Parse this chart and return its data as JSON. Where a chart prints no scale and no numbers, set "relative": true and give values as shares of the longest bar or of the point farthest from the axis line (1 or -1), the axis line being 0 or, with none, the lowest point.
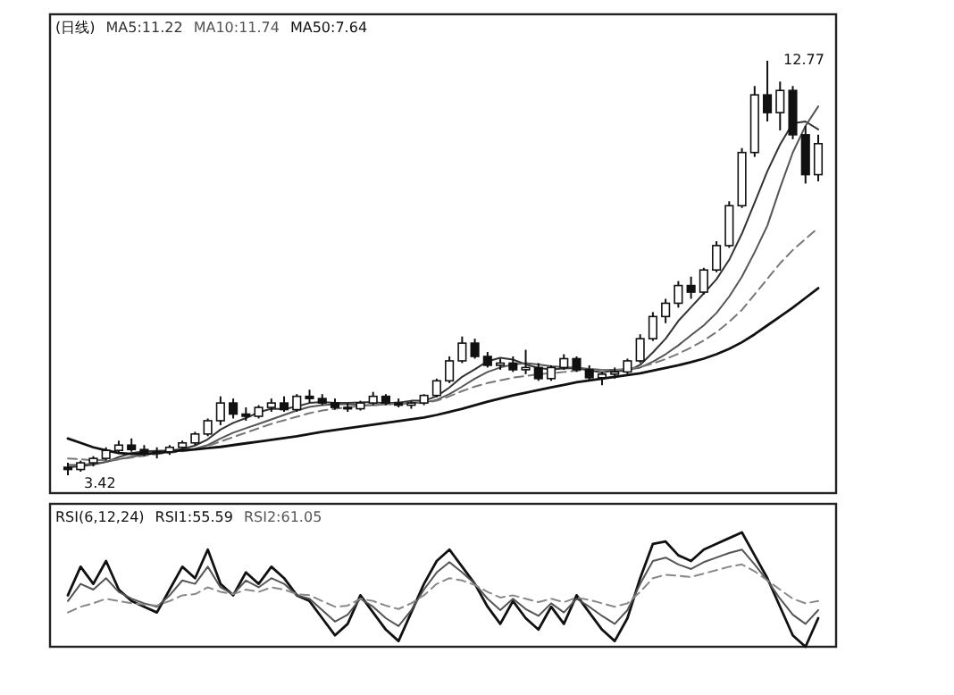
{
  "chart_data": [
    {
      "type": "candlestick",
      "title": "(日线)",
      "categories": [
        null,
        null,
        null,
        null,
        null,
        null,
        null,
        null,
        null,
        null,
        null,
        null,
        null,
        null,
        null,
        null,
        null,
        null,
        null,
        null,
        null,
        null,
        null,
        null,
        null,
        null,
        null,
        null,
        null,
        null,
        null,
        null,
        null,
        null,
        null,
        null,
        null,
        null,
        null,
        null,
        null,
        null,
        null,
        null,
        null,
        null,
        null,
        null,
        null,
        null,
        null,
        null,
        null,
        null,
        null,
        null,
        null,
        null,
        null,
        null
      ],
      "ohlc": [
        [
          3.6,
          3.7,
          3.42,
          3.55
        ],
        [
          3.55,
          3.75,
          3.5,
          3.7
        ],
        [
          3.7,
          3.85,
          3.62,
          3.8
        ],
        [
          3.8,
          4.05,
          3.75,
          3.98
        ],
        [
          3.98,
          4.2,
          3.9,
          4.1
        ],
        [
          4.1,
          4.25,
          3.95,
          4.0
        ],
        [
          4.0,
          4.1,
          3.85,
          3.92
        ],
        [
          3.92,
          4.05,
          3.8,
          3.95
        ],
        [
          3.95,
          4.1,
          3.88,
          4.05
        ],
        [
          4.05,
          4.2,
          4.0,
          4.15
        ],
        [
          4.15,
          4.4,
          4.1,
          4.35
        ],
        [
          4.35,
          4.7,
          4.3,
          4.65
        ],
        [
          4.65,
          5.2,
          4.55,
          5.05
        ],
        [
          5.05,
          5.15,
          4.7,
          4.8
        ],
        [
          4.8,
          4.95,
          4.65,
          4.75
        ],
        [
          4.75,
          5.0,
          4.7,
          4.95
        ],
        [
          4.95,
          5.15,
          4.85,
          5.05
        ],
        [
          5.05,
          5.2,
          4.85,
          4.9
        ],
        [
          4.9,
          5.25,
          4.85,
          5.2
        ],
        [
          5.2,
          5.35,
          5.05,
          5.15
        ],
        [
          5.15,
          5.25,
          5.0,
          5.05
        ],
        [
          5.05,
          5.15,
          4.9,
          4.95
        ],
        [
          4.95,
          5.05,
          4.85,
          4.92
        ],
        [
          4.92,
          5.1,
          4.88,
          5.05
        ],
        [
          5.05,
          5.3,
          5.0,
          5.2
        ],
        [
          5.2,
          5.25,
          5.0,
          5.05
        ],
        [
          5.05,
          5.15,
          4.95,
          5.0
        ],
        [
          5.0,
          5.1,
          4.92,
          5.05
        ],
        [
          5.05,
          5.25,
          5.0,
          5.22
        ],
        [
          5.22,
          5.6,
          5.18,
          5.55
        ],
        [
          5.55,
          6.1,
          5.5,
          6.0
        ],
        [
          6.0,
          6.55,
          5.95,
          6.4
        ],
        [
          6.4,
          6.5,
          6.05,
          6.1
        ],
        [
          6.1,
          6.2,
          5.85,
          5.9
        ],
        [
          5.9,
          6.05,
          5.8,
          5.95
        ],
        [
          5.95,
          6.1,
          5.75,
          5.8
        ],
        [
          5.8,
          6.25,
          5.7,
          5.85
        ],
        [
          5.85,
          5.95,
          5.55,
          5.6
        ],
        [
          5.6,
          5.9,
          5.55,
          5.85
        ],
        [
          5.85,
          6.15,
          5.8,
          6.05
        ],
        [
          6.05,
          6.1,
          5.75,
          5.8
        ],
        [
          5.8,
          5.9,
          5.55,
          5.62
        ],
        [
          5.62,
          5.75,
          5.45,
          5.7
        ],
        [
          5.7,
          5.85,
          5.6,
          5.75
        ],
        [
          5.75,
          6.05,
          5.7,
          6.0
        ],
        [
          6.0,
          6.6,
          5.95,
          6.5
        ],
        [
          6.5,
          7.1,
          6.45,
          7.0
        ],
        [
          7.0,
          7.4,
          6.85,
          7.3
        ],
        [
          7.3,
          7.8,
          7.2,
          7.7
        ],
        [
          7.7,
          7.9,
          7.4,
          7.55
        ],
        [
          7.55,
          8.1,
          7.5,
          8.05
        ],
        [
          8.05,
          8.7,
          8.0,
          8.6
        ],
        [
          8.6,
          9.6,
          8.55,
          9.5
        ],
        [
          9.5,
          10.8,
          9.45,
          10.7
        ],
        [
          10.7,
          12.2,
          10.6,
          12.0
        ],
        [
          12.0,
          12.77,
          11.4,
          11.6
        ],
        [
          11.6,
          12.3,
          11.2,
          12.1
        ],
        [
          12.1,
          12.2,
          11.0,
          11.1
        ],
        [
          11.1,
          11.3,
          10.0,
          10.2
        ],
        [
          10.2,
          11.1,
          10.05,
          10.9
        ]
      ],
      "series": [
        {
          "type": "line",
          "name": "MA5:11.22",
          "color": "#333333",
          "values": [
            3.6,
            3.62,
            3.66,
            3.72,
            3.83,
            3.92,
            3.96,
            3.97,
            3.98,
            4.01,
            4.09,
            4.23,
            4.45,
            4.6,
            4.71,
            4.84,
            4.92,
            4.91,
            4.97,
            5.05,
            5.07,
            5.05,
            5.05,
            5.06,
            5.07,
            5.04,
            5.06,
            5.1,
            5.1,
            5.2,
            5.4,
            5.64,
            5.81,
            5.99,
            6.07,
            6.03,
            5.92,
            5.84,
            5.81,
            5.83,
            5.84,
            5.78,
            5.74,
            5.78,
            5.77,
            5.91,
            6.19,
            6.5,
            6.9,
            7.21,
            7.52,
            7.84,
            8.28,
            8.87,
            9.57,
            10.28,
            10.88,
            11.36,
            11.4,
            11.22
          ]
        },
        {
          "type": "line",
          "name": "MA10:11.74",
          "color": "#555555",
          "values": [
            3.65,
            3.65,
            3.68,
            3.72,
            3.78,
            3.84,
            3.88,
            3.92,
            3.96,
            3.98,
            4.02,
            4.1,
            4.25,
            4.38,
            4.48,
            4.58,
            4.68,
            4.78,
            4.88,
            4.96,
            5.0,
            5.02,
            5.02,
            5.0,
            5.0,
            5.02,
            5.04,
            5.05,
            5.06,
            5.12,
            5.25,
            5.42,
            5.6,
            5.75,
            5.85,
            5.92,
            5.95,
            5.92,
            5.88,
            5.86,
            5.85,
            5.82,
            5.8,
            5.8,
            5.8,
            5.85,
            5.98,
            6.15,
            6.35,
            6.58,
            6.8,
            7.08,
            7.45,
            7.9,
            8.45,
            9.05,
            9.9,
            10.7,
            11.3,
            11.74
          ]
        },
        {
          "type": "line",
          "color": "#777777",
          "line_style": "dashed",
          "values": [
            3.8,
            3.78,
            3.76,
            3.76,
            3.78,
            3.82,
            3.86,
            3.9,
            3.93,
            3.96,
            4.0,
            4.08,
            4.18,
            4.28,
            4.38,
            4.48,
            4.58,
            4.66,
            4.74,
            4.82,
            4.88,
            4.92,
            4.95,
            4.98,
            5.0,
            5.02,
            5.03,
            5.04,
            5.05,
            5.1,
            5.2,
            5.32,
            5.42,
            5.5,
            5.56,
            5.62,
            5.66,
            5.7,
            5.72,
            5.75,
            5.78,
            5.8,
            5.8,
            5.8,
            5.82,
            5.86,
            5.94,
            6.04,
            6.16,
            6.3,
            6.46,
            6.65,
            6.88,
            7.15,
            7.5,
            7.85,
            8.2,
            8.5,
            8.75,
            9.0
          ]
        },
        {
          "type": "line",
          "name": "MA50:7.64",
          "color": "#111111",
          "values": [
            4.25,
            4.15,
            4.05,
            3.98,
            3.92,
            3.9,
            3.9,
            3.92,
            3.95,
            3.98,
            4.0,
            4.03,
            4.06,
            4.1,
            4.14,
            4.18,
            4.22,
            4.26,
            4.3,
            4.35,
            4.4,
            4.44,
            4.48,
            4.52,
            4.56,
            4.6,
            4.64,
            4.68,
            4.72,
            4.78,
            4.85,
            4.92,
            5.0,
            5.08,
            5.15,
            5.22,
            5.28,
            5.34,
            5.4,
            5.46,
            5.52,
            5.56,
            5.6,
            5.64,
            5.68,
            5.72,
            5.78,
            5.84,
            5.9,
            5.97,
            6.05,
            6.15,
            6.27,
            6.42,
            6.6,
            6.8,
            7.0,
            7.2,
            7.42,
            7.64
          ]
        }
      ],
      "annotations": [
        "12.77",
        "3.42"
      ]
    },
    {
      "type": "line",
      "relative": true,
      "title": "RSI(6,12,24)",
      "categories": [
        null,
        null,
        null,
        null,
        null,
        null,
        null,
        null,
        null,
        null,
        null,
        null,
        null,
        null,
        null,
        null,
        null,
        null,
        null,
        null,
        null,
        null,
        null,
        null,
        null,
        null,
        null,
        null,
        null,
        null,
        null,
        null,
        null,
        null,
        null,
        null,
        null,
        null,
        null,
        null,
        null,
        null,
        null,
        null,
        null,
        null,
        null,
        null,
        null,
        null,
        null,
        null,
        null,
        null,
        null,
        null,
        null,
        null,
        null,
        null
      ],
      "series": [
        {
          "name": "RSI1:55.59",
          "color": "#111111",
          "values": [
            0.45,
            0.7,
            0.55,
            0.75,
            0.5,
            0.4,
            0.35,
            0.3,
            0.5,
            0.7,
            0.6,
            0.85,
            0.55,
            0.45,
            0.65,
            0.55,
            0.7,
            0.6,
            0.45,
            0.4,
            0.25,
            0.1,
            0.2,
            0.45,
            0.3,
            0.15,
            0.05,
            0.3,
            0.55,
            0.75,
            0.85,
            0.7,
            0.55,
            0.35,
            0.2,
            0.4,
            0.25,
            0.15,
            0.35,
            0.2,
            0.45,
            0.3,
            0.15,
            0.05,
            0.25,
            0.6,
            0.9,
            0.92,
            0.8,
            0.75,
            0.85,
            0.9,
            0.95,
            1.0,
            0.8,
            0.6,
            0.35,
            0.1,
            0.0,
            0.25
          ]
        },
        {
          "name": "RSI2:61.05",
          "color": "#555555",
          "values": [
            0.4,
            0.55,
            0.5,
            0.6,
            0.48,
            0.42,
            0.38,
            0.35,
            0.45,
            0.58,
            0.55,
            0.7,
            0.52,
            0.46,
            0.58,
            0.52,
            0.6,
            0.55,
            0.45,
            0.42,
            0.32,
            0.22,
            0.28,
            0.42,
            0.35,
            0.25,
            0.18,
            0.32,
            0.5,
            0.65,
            0.74,
            0.65,
            0.55,
            0.42,
            0.32,
            0.42,
            0.33,
            0.27,
            0.38,
            0.3,
            0.42,
            0.35,
            0.27,
            0.2,
            0.32,
            0.55,
            0.75,
            0.78,
            0.72,
            0.68,
            0.74,
            0.78,
            0.82,
            0.85,
            0.72,
            0.58,
            0.42,
            0.28,
            0.2,
            0.32
          ]
        },
        {
          "color": "#888888",
          "line_style": "dashed",
          "values": [
            0.3,
            0.35,
            0.38,
            0.42,
            0.4,
            0.38,
            0.37,
            0.36,
            0.4,
            0.45,
            0.46,
            0.52,
            0.48,
            0.46,
            0.5,
            0.48,
            0.52,
            0.5,
            0.46,
            0.45,
            0.4,
            0.35,
            0.36,
            0.42,
            0.4,
            0.36,
            0.33,
            0.38,
            0.45,
            0.55,
            0.6,
            0.58,
            0.54,
            0.48,
            0.43,
            0.45,
            0.42,
            0.39,
            0.42,
            0.39,
            0.43,
            0.41,
            0.38,
            0.35,
            0.38,
            0.48,
            0.6,
            0.63,
            0.62,
            0.61,
            0.64,
            0.67,
            0.7,
            0.72,
            0.66,
            0.58,
            0.5,
            0.42,
            0.38,
            0.4
          ]
        }
      ]
    }
  ]
}
